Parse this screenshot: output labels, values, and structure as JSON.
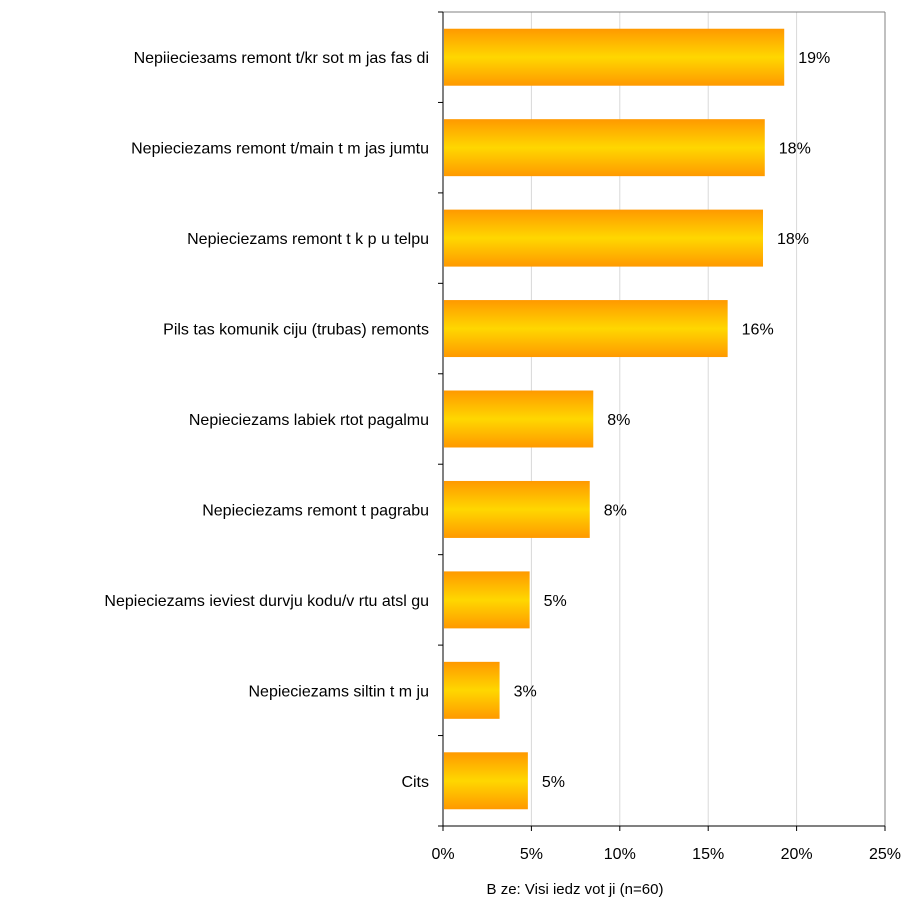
{
  "chart_data": {
    "type": "bar",
    "orientation": "horizontal",
    "categories": [
      "Nepiiecieзams remont  t/kr  sot m  jas fas  di",
      "Nepieciezams remont  t/main  t m  jas jumtu",
      "Nepieciezams remont  t k  p  u telpu",
      "Pils  tas komunik  ciju (trubas) remonts",
      "Nepieciezams labiek  rtot pagalmu",
      "Nepieciezams remont  t pagrabu",
      "Nepieciezams ieviest durvju kodu/v  rtu atsl  gu",
      "Nepieciezams siltin  t m  ju",
      "Cits"
    ],
    "values": [
      19.3,
      18.2,
      18.1,
      16.1,
      8.5,
      8.3,
      4.9,
      3.2,
      4.8
    ],
    "value_labels": [
      "19%",
      "18%",
      "18%",
      "16%",
      "8%",
      "8%",
      "5%",
      "3%",
      "5%"
    ],
    "xlim": [
      0,
      25
    ],
    "x_ticks": [
      0,
      5,
      10,
      15,
      20,
      25
    ],
    "x_tick_labels": [
      "0%",
      "5%",
      "10%",
      "15%",
      "20%",
      "25%"
    ],
    "grid": true,
    "footnote": "B  ze:  Visi iedz  vot  ji  (n=60)",
    "colors": {
      "bar_edge": "#FF9900",
      "bar_center": "#FFD700",
      "grid": "#D9D9D9",
      "axis": "#808080"
    }
  }
}
